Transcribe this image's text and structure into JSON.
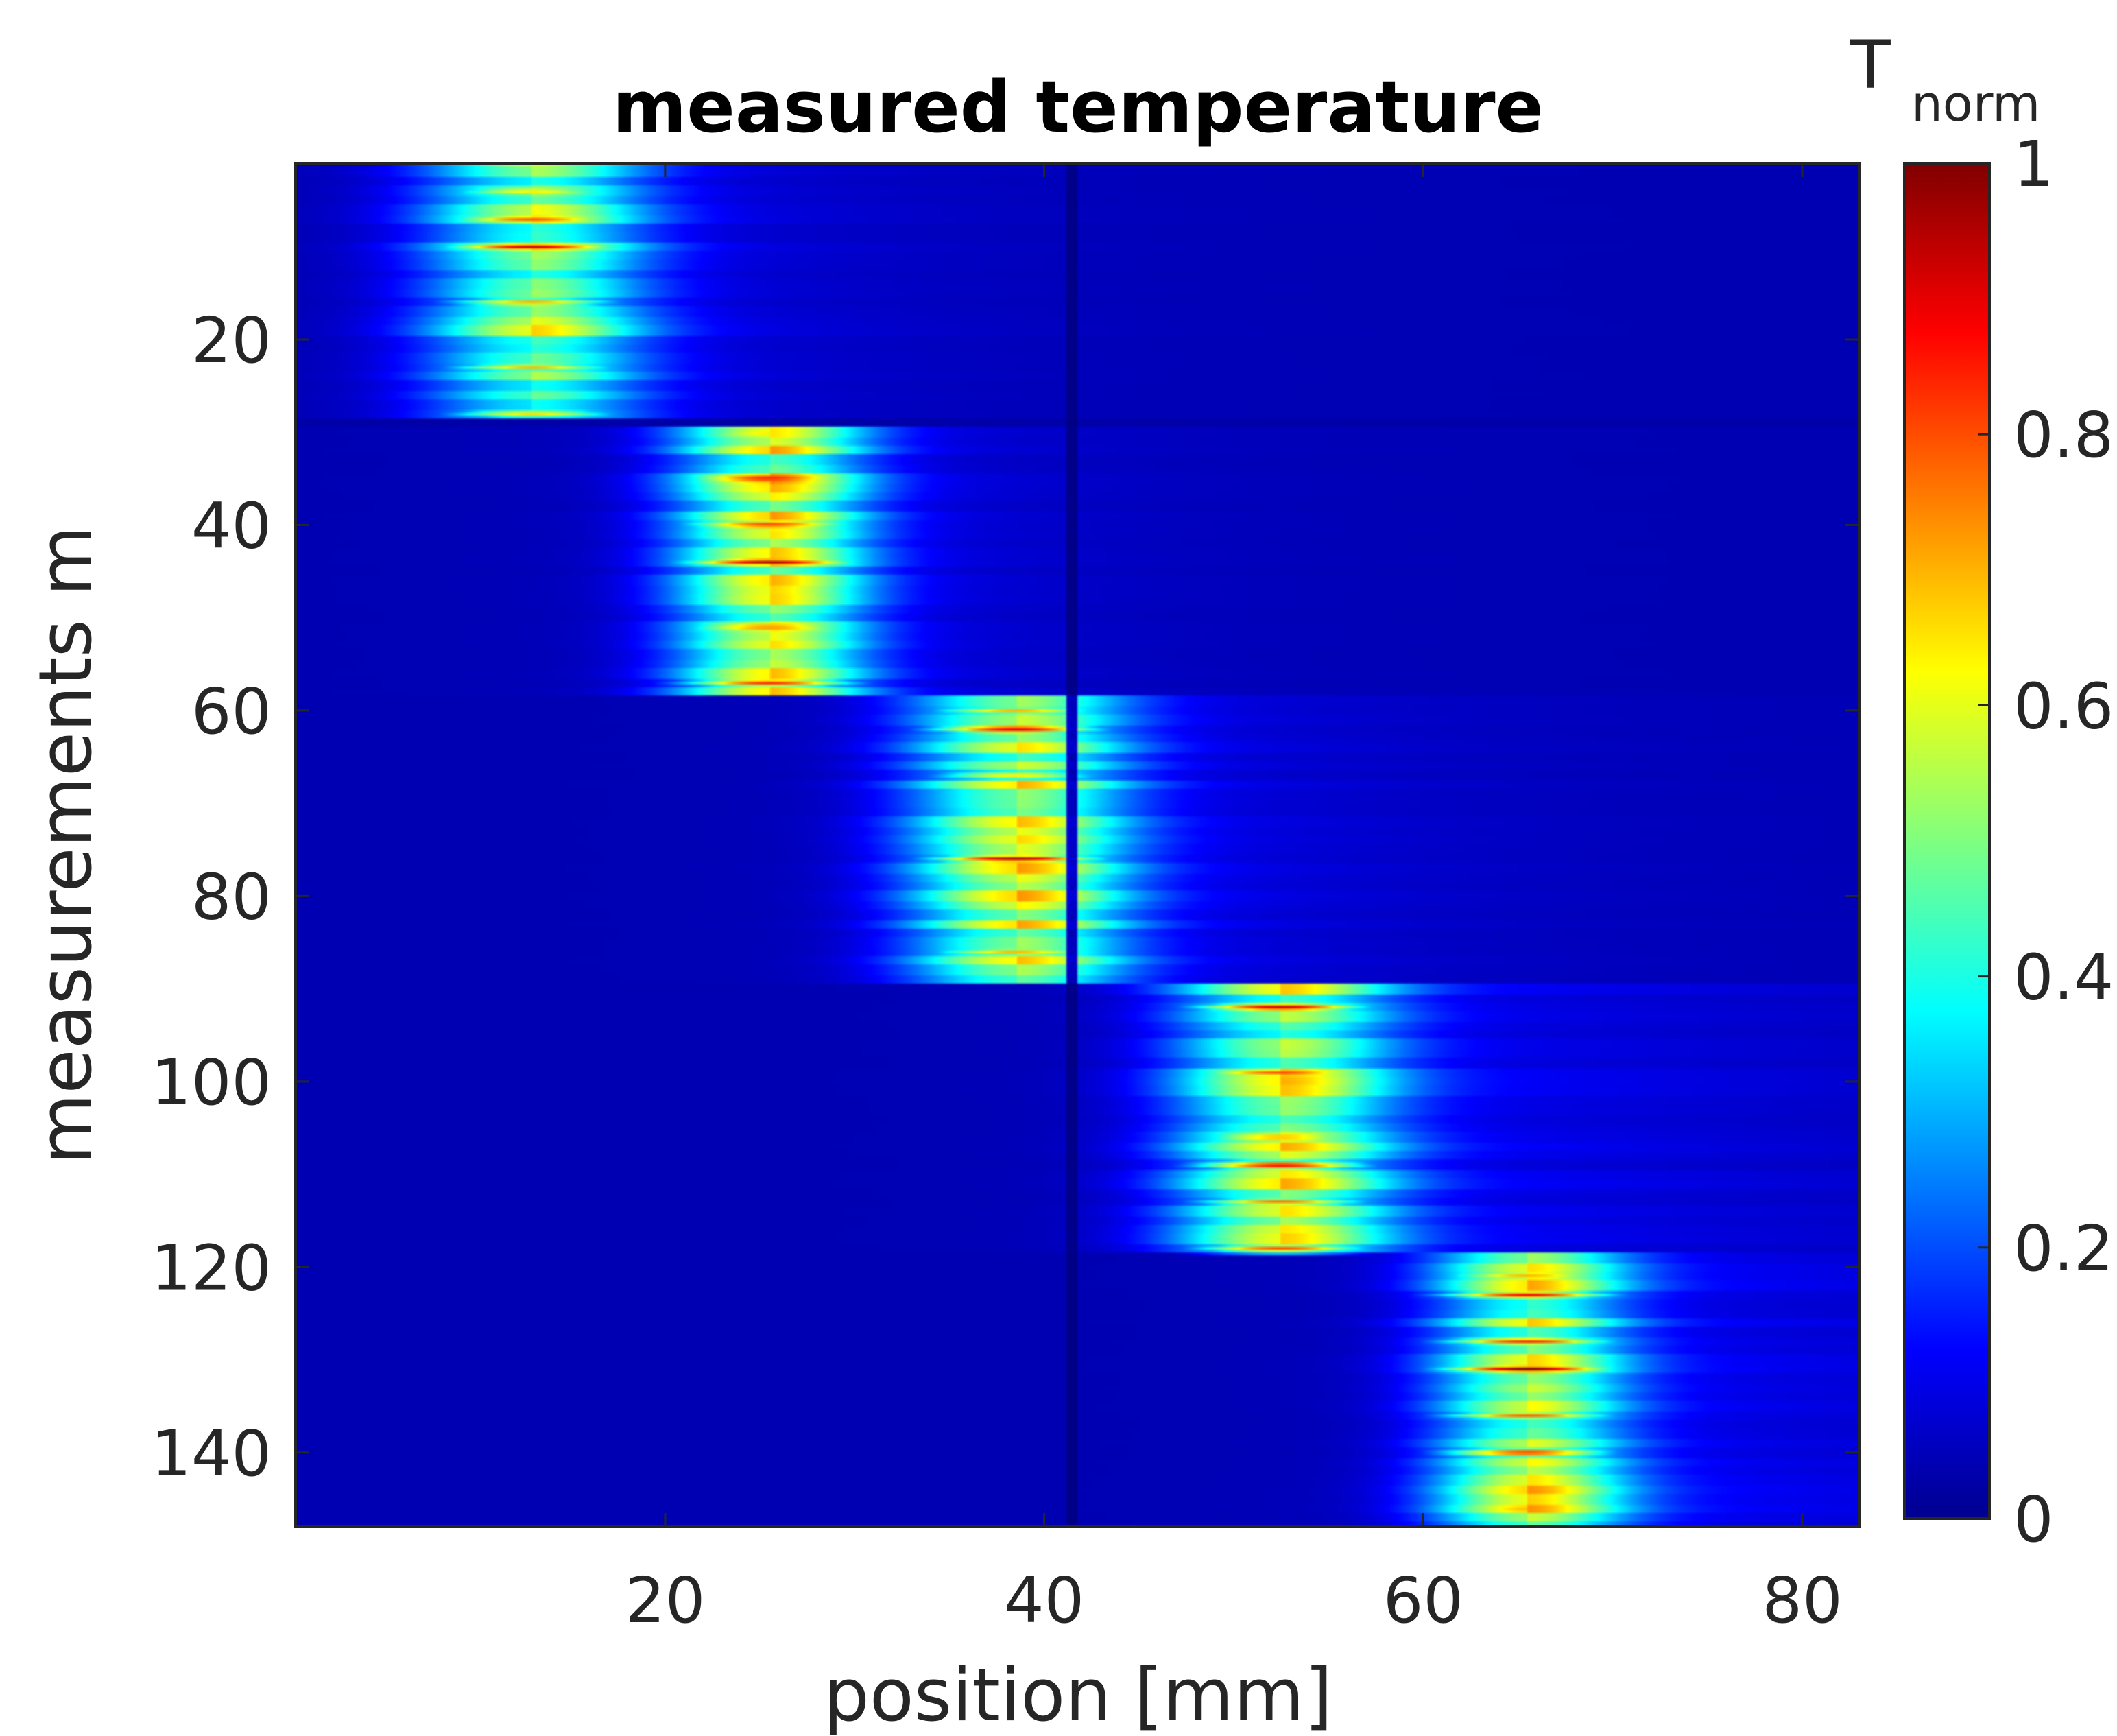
{
  "chart_data": {
    "type": "heatmap",
    "title": "measured temperature",
    "xlabel": "position [mm]",
    "ylabel": "measurements m",
    "xlim": [
      0.5,
      83
    ],
    "ylim": [
      1,
      148
    ],
    "y_reversed": true,
    "x_ticks": [
      20,
      40,
      60,
      80
    ],
    "y_ticks": [
      20,
      40,
      60,
      80,
      100,
      120,
      140
    ],
    "x_tick_labels": [
      "20",
      "40",
      "60",
      "80"
    ],
    "y_tick_labels": [
      "20",
      "40",
      "60",
      "80",
      "100",
      "120",
      "140"
    ],
    "colormap": "jet",
    "colorbar": {
      "label_main": "T",
      "label_sub": "norm",
      "range": [
        0,
        1
      ],
      "ticks": [
        0,
        0.2,
        0.4,
        0.6,
        0.8,
        1
      ],
      "tick_labels": [
        "0",
        "0.2",
        "0.4",
        "0.6",
        "0.8",
        "1"
      ]
    },
    "dead_pixel_column_mm": 41.5,
    "heat_blocks": [
      {
        "m_start": 1,
        "m_end": 28,
        "center_mm": 13,
        "width_mm": 4.0,
        "peak": 0.78,
        "tail_mm": 12
      },
      {
        "m_start": 30,
        "m_end": 58,
        "center_mm": 25.5,
        "width_mm": 3.5,
        "peak": 0.92,
        "tail_mm": 10
      },
      {
        "m_start": 59,
        "m_end": 89,
        "center_mm": 38.5,
        "width_mm": 4.0,
        "peak": 0.86,
        "tail_mm": 14
      },
      {
        "m_start": 90,
        "m_end": 118,
        "center_mm": 52.5,
        "width_mm": 4.0,
        "peak": 0.84,
        "tail_mm": 22
      },
      {
        "m_start": 119,
        "m_end": 148,
        "center_mm": 65.5,
        "width_mm": 3.5,
        "peak": 0.86,
        "tail_mm": 20
      }
    ],
    "hot_rows": [
      {
        "m": 1,
        "mm": 13,
        "v": 0.7
      },
      {
        "m": 4,
        "mm": 13,
        "v": 0.72
      },
      {
        "m": 7,
        "mm": 13,
        "v": 0.85
      },
      {
        "m": 10,
        "mm": 13,
        "v": 0.95
      },
      {
        "m": 16,
        "mm": 13,
        "v": 0.75
      },
      {
        "m": 23,
        "mm": 13,
        "v": 0.72
      },
      {
        "m": 28,
        "mm": 13,
        "v": 0.7
      },
      {
        "m": 30,
        "mm": 25.5,
        "v": 0.75
      },
      {
        "m": 35,
        "mm": 25.5,
        "v": 0.97
      },
      {
        "m": 40,
        "mm": 25.5,
        "v": 0.9
      },
      {
        "m": 44,
        "mm": 25.5,
        "v": 1.0
      },
      {
        "m": 51,
        "mm": 25.5,
        "v": 0.85
      },
      {
        "m": 57,
        "mm": 25.5,
        "v": 0.88
      },
      {
        "m": 60,
        "mm": 38.5,
        "v": 0.7
      },
      {
        "m": 62,
        "mm": 38.5,
        "v": 0.97
      },
      {
        "m": 67,
        "mm": 38.5,
        "v": 0.72
      },
      {
        "m": 76,
        "mm": 38.5,
        "v": 0.98
      },
      {
        "m": 86,
        "mm": 38.5,
        "v": 0.72
      },
      {
        "m": 92,
        "mm": 52.5,
        "v": 0.97
      },
      {
        "m": 99,
        "mm": 52.5,
        "v": 0.85
      },
      {
        "m": 106,
        "mm": 52.5,
        "v": 0.8
      },
      {
        "m": 109,
        "mm": 52.5,
        "v": 0.97
      },
      {
        "m": 113,
        "mm": 52.5,
        "v": 0.8
      },
      {
        "m": 118,
        "mm": 52.5,
        "v": 0.82
      },
      {
        "m": 121,
        "mm": 65.5,
        "v": 0.75
      },
      {
        "m": 123,
        "mm": 65.5,
        "v": 0.88
      },
      {
        "m": 128,
        "mm": 65.5,
        "v": 0.88
      },
      {
        "m": 131,
        "mm": 65.5,
        "v": 1.0
      },
      {
        "m": 136,
        "mm": 65.5,
        "v": 0.8
      },
      {
        "m": 140,
        "mm": 65.5,
        "v": 0.92
      },
      {
        "m": 146,
        "mm": 65.5,
        "v": 0.75
      }
    ]
  }
}
